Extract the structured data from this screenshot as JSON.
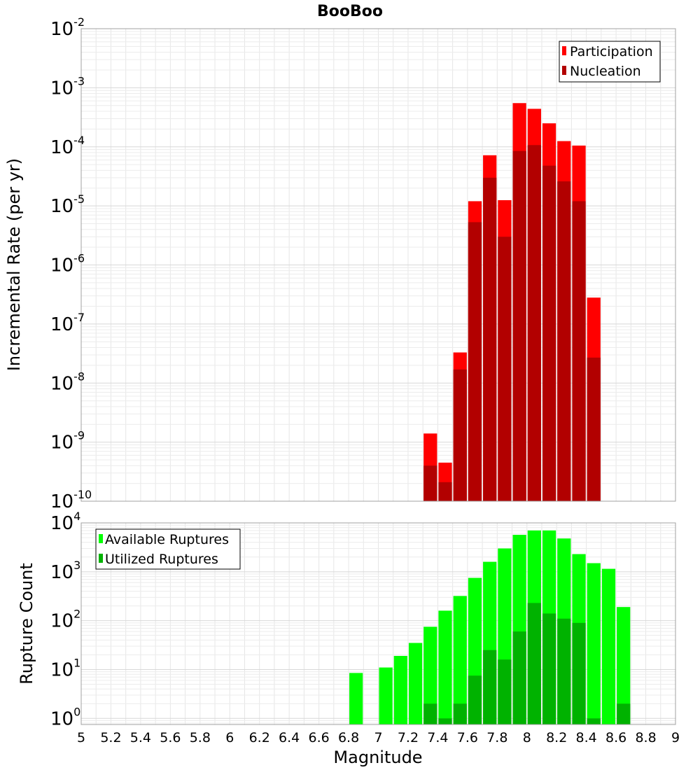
{
  "title": "BooBoo",
  "chart_data": [
    {
      "type": "bar",
      "ylabel": "Incremental Rate (per yr)",
      "xlabel": "Magnitude",
      "yscale": "log",
      "ylim": [
        1e-10,
        0.01
      ],
      "xlim": [
        5,
        9
      ],
      "grid": true,
      "legend_position": "top-right",
      "bar_width": 0.1,
      "y_ticks": [
        {
          "base": "10",
          "exp": "-10"
        },
        {
          "base": "10",
          "exp": "-9"
        },
        {
          "base": "10",
          "exp": "-8"
        },
        {
          "base": "10",
          "exp": "-7"
        },
        {
          "base": "10",
          "exp": "-6"
        },
        {
          "base": "10",
          "exp": "-5"
        },
        {
          "base": "10",
          "exp": "-4"
        },
        {
          "base": "10",
          "exp": "-3"
        },
        {
          "base": "10",
          "exp": "-2"
        }
      ],
      "series": [
        {
          "name": "Participation",
          "color": "#ff0000",
          "x": [
            7.35,
            7.45,
            7.55,
            7.65,
            7.75,
            7.85,
            7.95,
            8.05,
            8.15,
            8.25,
            8.35,
            8.45
          ],
          "values": [
            1.4e-09,
            4.5e-10,
            3.3e-08,
            1.2e-05,
            7.2e-05,
            1.25e-05,
            0.00055,
            0.00044,
            0.00025,
            0.000125,
            0.000105,
            2.8e-07
          ]
        },
        {
          "name": "Nucleation",
          "color": "#b20000",
          "x": [
            7.35,
            7.45,
            7.55,
            7.65,
            7.75,
            7.85,
            7.95,
            8.05,
            8.15,
            8.25,
            8.35,
            8.45
          ],
          "values": [
            4e-10,
            2.1e-10,
            1.7e-08,
            5.3e-06,
            3e-05,
            3e-06,
            8.5e-05,
            0.000107,
            4.8e-05,
            2.6e-05,
            1.2e-05,
            2.7e-08
          ]
        }
      ]
    },
    {
      "type": "bar",
      "ylabel": "Rupture Count",
      "xlabel": "Magnitude",
      "yscale": "log",
      "ylim": [
        0.75,
        10000
      ],
      "xlim": [
        5,
        9
      ],
      "grid": true,
      "legend_position": "top-left",
      "bar_width": 0.1,
      "x_ticks": [
        "5",
        "5.2",
        "5.4",
        "5.6",
        "5.8",
        "6",
        "6.2",
        "6.4",
        "6.6",
        "6.8",
        "7",
        "7.2",
        "7.4",
        "7.6",
        "7.8",
        "8",
        "8.2",
        "8.4",
        "8.6",
        "8.8",
        "9"
      ],
      "y_ticks": [
        {
          "base": "10",
          "exp": "0"
        },
        {
          "base": "10",
          "exp": "1"
        },
        {
          "base": "10",
          "exp": "2"
        },
        {
          "base": "10",
          "exp": "3"
        },
        {
          "base": "10",
          "exp": "4"
        }
      ],
      "series": [
        {
          "name": "Available Ruptures",
          "color": "#00ff00",
          "x": [
            6.85,
            7.05,
            7.15,
            7.25,
            7.35,
            7.45,
            7.55,
            7.65,
            7.75,
            7.85,
            7.95,
            8.05,
            8.15,
            8.25,
            8.35,
            8.45,
            8.55,
            8.65
          ],
          "values": [
            8.5,
            11,
            19,
            35,
            75,
            160,
            320,
            750,
            1600,
            3000,
            5700,
            7000,
            7000,
            4800,
            2300,
            1500,
            1150,
            190
          ]
        },
        {
          "name": "Utilized Ruptures",
          "color": "#00b200",
          "x": [
            7.35,
            7.45,
            7.55,
            7.65,
            7.75,
            7.85,
            7.95,
            8.05,
            8.15,
            8.25,
            8.35,
            8.45,
            8.65
          ],
          "values": [
            2,
            1,
            2,
            7.5,
            25,
            16,
            60,
            230,
            140,
            110,
            90,
            1,
            2
          ]
        }
      ]
    }
  ]
}
